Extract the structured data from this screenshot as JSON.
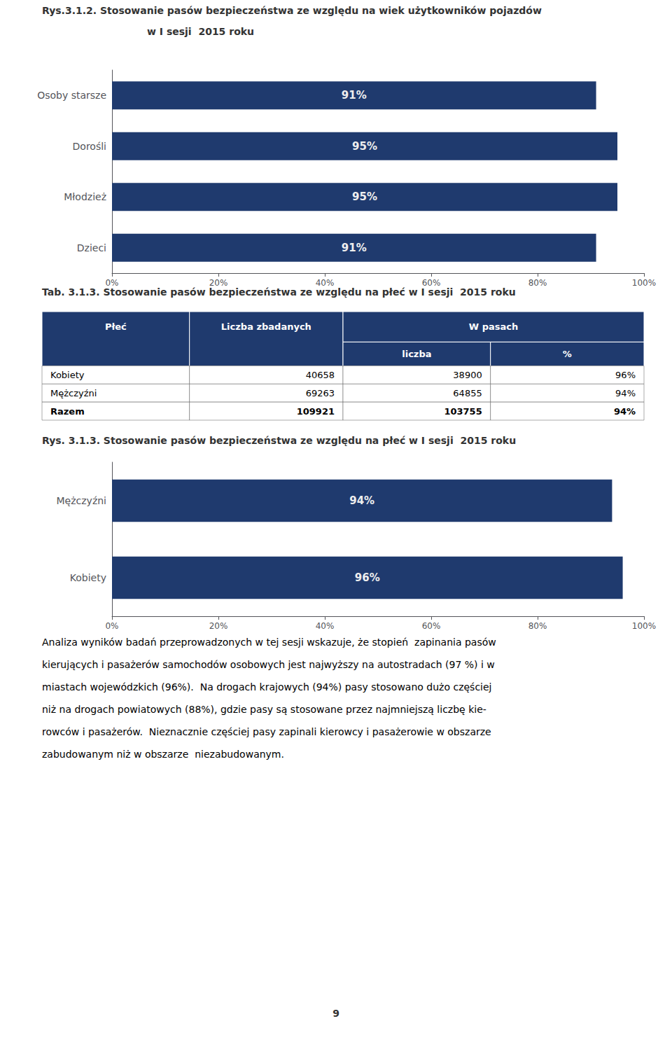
{
  "chart_data": [
    {
      "type": "bar",
      "orientation": "horizontal",
      "title": "Rys.3.1.2. Stosowanie pasów bezpieczeństwa ze względu na wiek użytkowników pojazdów",
      "subtitle": "w I sesji  2015 roku",
      "categories": [
        "Dzieci",
        "Młodzież",
        "Dorośli",
        "Osoby starsze"
      ],
      "values": [
        91,
        95,
        95,
        91
      ],
      "value_labels": [
        "91%",
        "95%",
        "95%",
        "91%"
      ],
      "data_labels": true,
      "color": "#1F3A6E",
      "xlim": [
        0,
        100
      ],
      "xticks": [
        {
          "value": 0,
          "label": "0%"
        },
        {
          "value": 20,
          "label": "20%"
        },
        {
          "value": 40,
          "label": "40%"
        },
        {
          "value": 60,
          "label": "60%"
        },
        {
          "value": 80,
          "label": "80%"
        },
        {
          "value": 100,
          "label": "100%"
        }
      ],
      "grid": false
    },
    {
      "type": "table",
      "title": "Tab. 3.1.3. Stosowanie pasów bezpieczeństwa ze względu na płeć w I sesji  2015 roku",
      "columns": [
        "Płeć",
        "Liczba zbadanych",
        "W pasach"
      ],
      "subcolumns": [
        "liczba",
        "%"
      ],
      "rows": [
        [
          "Kobiety",
          "40658",
          "38900",
          "96%"
        ],
        [
          "Mężczyźni",
          "69263",
          "64855",
          "94%"
        ],
        [
          "Razem",
          "109921",
          "103755",
          "94%"
        ]
      ],
      "color": "#1F3A6E"
    },
    {
      "type": "bar",
      "orientation": "horizontal",
      "title": "Rys. 3.1.3. Stosowanie pasów bezpieczeństwa ze względu na płeć w I sesji  2015 roku",
      "categories": [
        "Kobiety",
        "Mężczyźni"
      ],
      "values": [
        96,
        94
      ],
      "value_labels": [
        "96%",
        "94%"
      ],
      "data_labels": true,
      "color": "#1F3A6E",
      "xlim": [
        0,
        100
      ],
      "xticks": [
        {
          "value": 0,
          "label": "0%"
        },
        {
          "value": 20,
          "label": "20%"
        },
        {
          "value": 40,
          "label": "40%"
        },
        {
          "value": 60,
          "label": "60%"
        },
        {
          "value": 80,
          "label": "80%"
        },
        {
          "value": 100,
          "label": "100%"
        }
      ],
      "grid": false
    },
    {
      "type": "text",
      "annotations": [
        "Analiza wyników badań przeprowadzonych w tej sesji wskazuje, że stopień  zapinania pasów",
        "kierujących i pasażerów samochodów osobowych jest najwyższy na autostradach (97 %) i w",
        "miastach wojewódzkich (96%).  Na drogach krajowych (94%) pasy stosowano dużo częściej",
        "niż na drogach powiatowych (88%), gdzie pasy są stosowane przez najmniejszą liczbę kie-",
        "rowców i pasażerów.  Nieznacznie częściej pasy zapinali kierowcy i pasażerowie w obszarze",
        "zabudowanym niż w obszarze  niezabudowanym."
      ]
    },
    {
      "type": "text",
      "annotations": [
        "9"
      ]
    }
  ]
}
